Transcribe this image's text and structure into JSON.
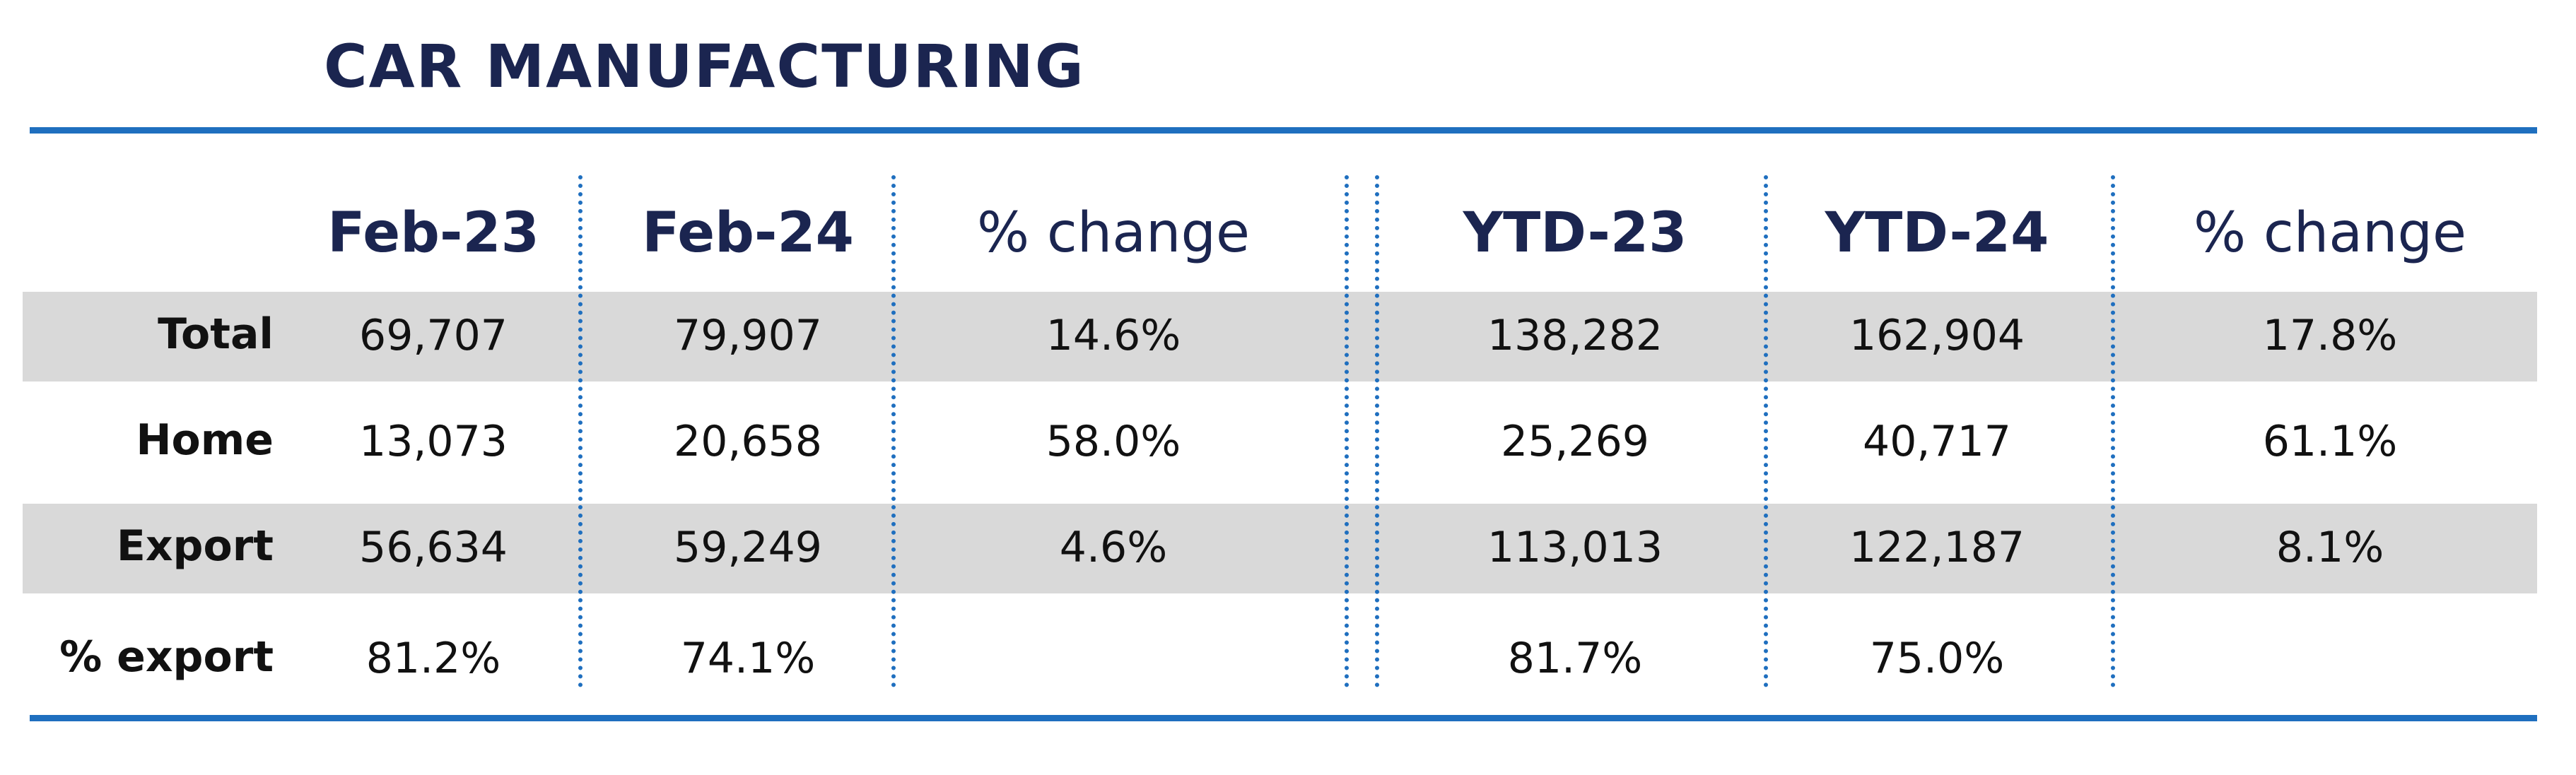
{
  "title": "CAR MANUFACTURING",
  "colors": {
    "accent": "#1f6fbf",
    "heading": "#1b2550",
    "band": "#d9d9d9"
  },
  "chart_data": {
    "type": "table",
    "title": "CAR MANUFACTURING",
    "columns": [
      "Feb-23",
      "Feb-24",
      "% change",
      "YTD-23",
      "YTD-24",
      "% change"
    ],
    "rows": [
      {
        "label": "Total",
        "values": [
          "69,707",
          "79,907",
          "14.6%",
          "138,282",
          "162,904",
          "17.8%"
        ]
      },
      {
        "label": "Home",
        "values": [
          "13,073",
          "20,658",
          "58.0%",
          "25,269",
          "40,717",
          "61.1%"
        ]
      },
      {
        "label": "Export",
        "values": [
          "56,634",
          "59,249",
          "4.6%",
          "113,013",
          "122,187",
          "8.1%"
        ]
      },
      {
        "label": "% export",
        "values": [
          "81.2%",
          "74.1%",
          "",
          "81.7%",
          "75.0%",
          ""
        ]
      }
    ]
  }
}
